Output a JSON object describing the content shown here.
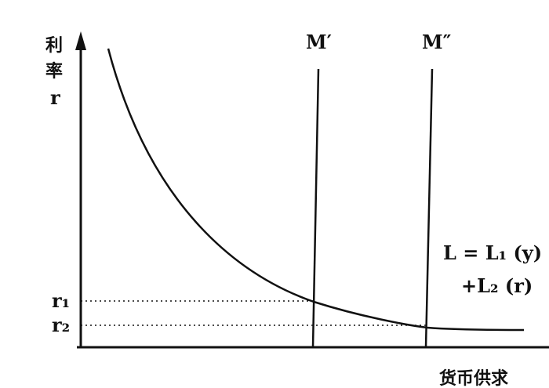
{
  "y_axis": {
    "label_line1": "利",
    "label_line2": "率",
    "label_symbol": "r"
  },
  "x_axis": {
    "label": "货币供求"
  },
  "supply": {
    "m1": "M′",
    "m2": "M″"
  },
  "demand": {
    "line1": "L = L₁ (y)",
    "line2": "+L₂ (r)"
  },
  "rates": {
    "r1": "r₁",
    "r2": "r₂"
  }
}
